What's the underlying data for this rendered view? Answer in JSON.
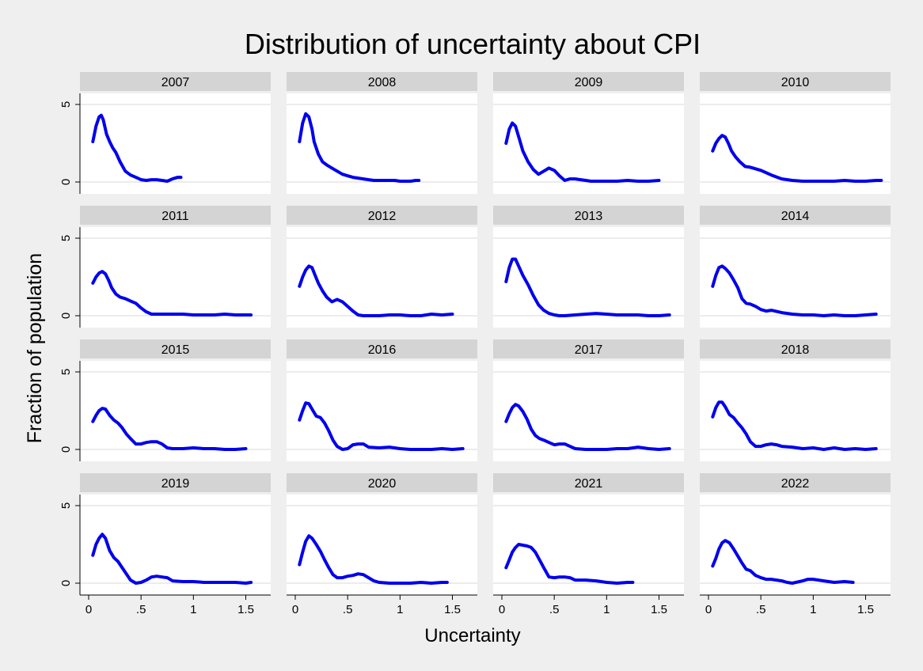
{
  "chart_data": {
    "type": "line",
    "title": "Distribution of uncertainty about CPI",
    "xlabel": "Uncertainty",
    "ylabel": "Fraction of population",
    "xlim": [
      0,
      1.65
    ],
    "ylim": [
      0,
      5
    ],
    "x_ticks": [
      0,
      0.5,
      1,
      1.5
    ],
    "x_tick_labels": [
      "0",
      ".5",
      "1",
      "1.5"
    ],
    "y_ticks": [
      0,
      5
    ],
    "y_tick_labels": [
      "0",
      "5"
    ],
    "grid": true,
    "line_color": "#0000ee",
    "panel_header_color": "#d4d4d4",
    "background_color": "#efefef",
    "panels": [
      {
        "name": "2007",
        "x": [
          0.04,
          0.07,
          0.1,
          0.12,
          0.14,
          0.17,
          0.2,
          0.23,
          0.26,
          0.3,
          0.35,
          0.4,
          0.45,
          0.5,
          0.55,
          0.6,
          0.65,
          0.7,
          0.75,
          0.8,
          0.85,
          0.88
        ],
        "y": [
          2.6,
          3.6,
          4.2,
          4.3,
          4.0,
          3.1,
          2.6,
          2.2,
          1.9,
          1.3,
          0.7,
          0.45,
          0.3,
          0.15,
          0.1,
          0.15,
          0.15,
          0.1,
          0.05,
          0.2,
          0.3,
          0.3
        ]
      },
      {
        "name": "2008",
        "x": [
          0.04,
          0.07,
          0.1,
          0.13,
          0.16,
          0.18,
          0.22,
          0.26,
          0.3,
          0.35,
          0.4,
          0.45,
          0.5,
          0.55,
          0.6,
          0.65,
          0.7,
          0.75,
          0.8,
          0.85,
          0.9,
          0.95,
          1.0,
          1.05,
          1.1,
          1.15,
          1.18
        ],
        "y": [
          2.6,
          3.8,
          4.4,
          4.2,
          3.4,
          2.6,
          1.8,
          1.3,
          1.1,
          0.9,
          0.7,
          0.5,
          0.4,
          0.3,
          0.25,
          0.2,
          0.15,
          0.1,
          0.1,
          0.1,
          0.1,
          0.1,
          0.05,
          0.05,
          0.05,
          0.1,
          0.1
        ]
      },
      {
        "name": "2009",
        "x": [
          0.04,
          0.07,
          0.1,
          0.13,
          0.17,
          0.2,
          0.25,
          0.3,
          0.35,
          0.4,
          0.45,
          0.5,
          0.55,
          0.6,
          0.65,
          0.7,
          0.75,
          0.8,
          0.85,
          0.9,
          1.0,
          1.1,
          1.2,
          1.3,
          1.4,
          1.5
        ],
        "y": [
          2.5,
          3.4,
          3.8,
          3.6,
          2.7,
          2.0,
          1.3,
          0.8,
          0.5,
          0.7,
          0.9,
          0.75,
          0.4,
          0.1,
          0.2,
          0.2,
          0.15,
          0.1,
          0.05,
          0.05,
          0.05,
          0.05,
          0.1,
          0.05,
          0.05,
          0.1
        ]
      },
      {
        "name": "2010",
        "x": [
          0.04,
          0.07,
          0.1,
          0.13,
          0.16,
          0.19,
          0.22,
          0.26,
          0.3,
          0.35,
          0.4,
          0.5,
          0.6,
          0.7,
          0.8,
          0.9,
          1.0,
          1.1,
          1.2,
          1.3,
          1.4,
          1.5,
          1.6,
          1.65
        ],
        "y": [
          2.0,
          2.5,
          2.8,
          3.0,
          2.9,
          2.5,
          2.0,
          1.6,
          1.3,
          1.0,
          0.95,
          0.75,
          0.45,
          0.2,
          0.1,
          0.05,
          0.05,
          0.05,
          0.05,
          0.1,
          0.05,
          0.05,
          0.1,
          0.1
        ]
      },
      {
        "name": "2011",
        "x": [
          0.04,
          0.07,
          0.1,
          0.13,
          0.16,
          0.19,
          0.22,
          0.26,
          0.3,
          0.35,
          0.4,
          0.45,
          0.5,
          0.55,
          0.6,
          0.7,
          0.8,
          0.9,
          1.0,
          1.1,
          1.2,
          1.3,
          1.4,
          1.5,
          1.55
        ],
        "y": [
          2.1,
          2.5,
          2.75,
          2.85,
          2.7,
          2.3,
          1.8,
          1.4,
          1.2,
          1.1,
          0.95,
          0.8,
          0.5,
          0.25,
          0.1,
          0.1,
          0.1,
          0.1,
          0.05,
          0.05,
          0.05,
          0.1,
          0.05,
          0.05,
          0.05
        ]
      },
      {
        "name": "2012",
        "x": [
          0.04,
          0.07,
          0.1,
          0.13,
          0.16,
          0.19,
          0.22,
          0.26,
          0.3,
          0.35,
          0.4,
          0.45,
          0.5,
          0.55,
          0.6,
          0.65,
          0.7,
          0.8,
          0.9,
          1.0,
          1.1,
          1.2,
          1.3,
          1.4,
          1.5
        ],
        "y": [
          1.9,
          2.5,
          2.95,
          3.2,
          3.1,
          2.6,
          2.1,
          1.6,
          1.2,
          0.9,
          1.05,
          0.9,
          0.6,
          0.3,
          0.05,
          0.0,
          0.0,
          0.0,
          0.05,
          0.05,
          0.0,
          0.0,
          0.1,
          0.05,
          0.1
        ]
      },
      {
        "name": "2013",
        "x": [
          0.04,
          0.07,
          0.1,
          0.13,
          0.16,
          0.2,
          0.25,
          0.3,
          0.35,
          0.4,
          0.45,
          0.5,
          0.55,
          0.6,
          0.7,
          0.8,
          0.9,
          1.0,
          1.1,
          1.2,
          1.3,
          1.4,
          1.5,
          1.6
        ],
        "y": [
          2.2,
          3.1,
          3.65,
          3.65,
          3.2,
          2.6,
          2.0,
          1.3,
          0.7,
          0.35,
          0.15,
          0.05,
          0.0,
          0.0,
          0.05,
          0.1,
          0.15,
          0.1,
          0.05,
          0.05,
          0.05,
          0.0,
          0.0,
          0.05
        ]
      },
      {
        "name": "2014",
        "x": [
          0.04,
          0.07,
          0.1,
          0.13,
          0.16,
          0.2,
          0.24,
          0.28,
          0.32,
          0.36,
          0.4,
          0.45,
          0.5,
          0.55,
          0.6,
          0.7,
          0.8,
          0.9,
          1.0,
          1.1,
          1.2,
          1.3,
          1.4,
          1.5,
          1.6
        ],
        "y": [
          1.9,
          2.6,
          3.1,
          3.2,
          3.05,
          2.75,
          2.3,
          1.8,
          1.1,
          0.8,
          0.75,
          0.6,
          0.4,
          0.3,
          0.35,
          0.2,
          0.1,
          0.05,
          0.05,
          0.0,
          0.05,
          0.0,
          0.0,
          0.05,
          0.1
        ]
      },
      {
        "name": "2015",
        "x": [
          0.04,
          0.07,
          0.1,
          0.13,
          0.16,
          0.2,
          0.24,
          0.28,
          0.32,
          0.36,
          0.4,
          0.45,
          0.5,
          0.55,
          0.6,
          0.65,
          0.7,
          0.75,
          0.8,
          0.9,
          1.0,
          1.1,
          1.2,
          1.3,
          1.4,
          1.5
        ],
        "y": [
          1.8,
          2.2,
          2.5,
          2.65,
          2.6,
          2.2,
          1.9,
          1.7,
          1.4,
          1.0,
          0.7,
          0.35,
          0.35,
          0.45,
          0.5,
          0.5,
          0.35,
          0.1,
          0.05,
          0.05,
          0.1,
          0.05,
          0.05,
          0.0,
          0.0,
          0.05
        ]
      },
      {
        "name": "2016",
        "x": [
          0.04,
          0.07,
          0.1,
          0.13,
          0.16,
          0.2,
          0.24,
          0.28,
          0.32,
          0.36,
          0.4,
          0.45,
          0.5,
          0.55,
          0.6,
          0.65,
          0.7,
          0.8,
          0.9,
          1.0,
          1.1,
          1.2,
          1.3,
          1.4,
          1.5,
          1.6
        ],
        "y": [
          1.9,
          2.5,
          3.0,
          2.95,
          2.6,
          2.15,
          2.05,
          1.7,
          1.2,
          0.6,
          0.2,
          0.0,
          0.05,
          0.3,
          0.35,
          0.35,
          0.15,
          0.1,
          0.15,
          0.05,
          0.0,
          0.0,
          0.0,
          0.05,
          0.0,
          0.05
        ]
      },
      {
        "name": "2017",
        "x": [
          0.04,
          0.07,
          0.1,
          0.13,
          0.16,
          0.2,
          0.24,
          0.28,
          0.32,
          0.36,
          0.4,
          0.45,
          0.5,
          0.55,
          0.6,
          0.65,
          0.7,
          0.8,
          0.9,
          1.0,
          1.1,
          1.2,
          1.3,
          1.4,
          1.5,
          1.6
        ],
        "y": [
          1.8,
          2.3,
          2.7,
          2.9,
          2.8,
          2.45,
          1.95,
          1.3,
          0.9,
          0.7,
          0.6,
          0.45,
          0.3,
          0.35,
          0.35,
          0.2,
          0.05,
          0.0,
          0.0,
          0.0,
          0.05,
          0.05,
          0.15,
          0.05,
          0.0,
          0.05
        ]
      },
      {
        "name": "2018",
        "x": [
          0.04,
          0.07,
          0.1,
          0.13,
          0.16,
          0.2,
          0.24,
          0.28,
          0.32,
          0.36,
          0.4,
          0.45,
          0.5,
          0.55,
          0.6,
          0.65,
          0.7,
          0.8,
          0.9,
          1.0,
          1.1,
          1.2,
          1.3,
          1.4,
          1.5,
          1.6
        ],
        "y": [
          2.1,
          2.7,
          3.05,
          3.05,
          2.75,
          2.25,
          2.05,
          1.7,
          1.4,
          1.0,
          0.5,
          0.2,
          0.2,
          0.3,
          0.35,
          0.3,
          0.2,
          0.15,
          0.05,
          0.1,
          0.0,
          0.1,
          0.0,
          0.05,
          0.0,
          0.05
        ]
      },
      {
        "name": "2019",
        "x": [
          0.04,
          0.07,
          0.1,
          0.13,
          0.16,
          0.2,
          0.24,
          0.28,
          0.32,
          0.36,
          0.4,
          0.45,
          0.5,
          0.55,
          0.6,
          0.65,
          0.7,
          0.75,
          0.8,
          0.9,
          1.0,
          1.1,
          1.2,
          1.3,
          1.4,
          1.5,
          1.55
        ],
        "y": [
          1.8,
          2.5,
          2.9,
          3.15,
          2.9,
          2.1,
          1.65,
          1.4,
          1.0,
          0.6,
          0.2,
          0.0,
          0.05,
          0.2,
          0.4,
          0.45,
          0.4,
          0.35,
          0.15,
          0.1,
          0.1,
          0.05,
          0.05,
          0.05,
          0.05,
          0.0,
          0.05
        ]
      },
      {
        "name": "2020",
        "x": [
          0.04,
          0.07,
          0.1,
          0.13,
          0.16,
          0.2,
          0.24,
          0.28,
          0.32,
          0.36,
          0.4,
          0.45,
          0.5,
          0.55,
          0.6,
          0.65,
          0.7,
          0.75,
          0.8,
          0.9,
          1.0,
          1.1,
          1.2,
          1.3,
          1.4,
          1.45
        ],
        "y": [
          1.2,
          2.0,
          2.7,
          3.05,
          2.9,
          2.5,
          2.05,
          1.5,
          1.0,
          0.55,
          0.35,
          0.35,
          0.45,
          0.5,
          0.6,
          0.55,
          0.35,
          0.15,
          0.05,
          0.0,
          0.0,
          0.0,
          0.05,
          0.0,
          0.05,
          0.05
        ]
      },
      {
        "name": "2021",
        "x": [
          0.04,
          0.07,
          0.1,
          0.13,
          0.16,
          0.2,
          0.24,
          0.28,
          0.32,
          0.36,
          0.4,
          0.45,
          0.5,
          0.55,
          0.6,
          0.65,
          0.7,
          0.8,
          0.9,
          1.0,
          1.1,
          1.2,
          1.25
        ],
        "y": [
          1.0,
          1.5,
          2.0,
          2.3,
          2.5,
          2.45,
          2.4,
          2.3,
          2.0,
          1.5,
          1.0,
          0.4,
          0.35,
          0.4,
          0.4,
          0.35,
          0.2,
          0.2,
          0.15,
          0.05,
          0.0,
          0.05,
          0.05
        ]
      },
      {
        "name": "2022",
        "x": [
          0.04,
          0.07,
          0.1,
          0.13,
          0.16,
          0.2,
          0.24,
          0.28,
          0.32,
          0.36,
          0.4,
          0.45,
          0.5,
          0.55,
          0.6,
          0.65,
          0.7,
          0.75,
          0.8,
          0.9,
          0.95,
          1.0,
          1.05,
          1.1,
          1.2,
          1.3,
          1.38
        ],
        "y": [
          1.1,
          1.6,
          2.2,
          2.6,
          2.75,
          2.6,
          2.2,
          1.75,
          1.3,
          0.9,
          0.8,
          0.5,
          0.35,
          0.25,
          0.25,
          0.2,
          0.15,
          0.05,
          0.0,
          0.15,
          0.25,
          0.25,
          0.2,
          0.15,
          0.05,
          0.1,
          0.05
        ]
      }
    ]
  }
}
